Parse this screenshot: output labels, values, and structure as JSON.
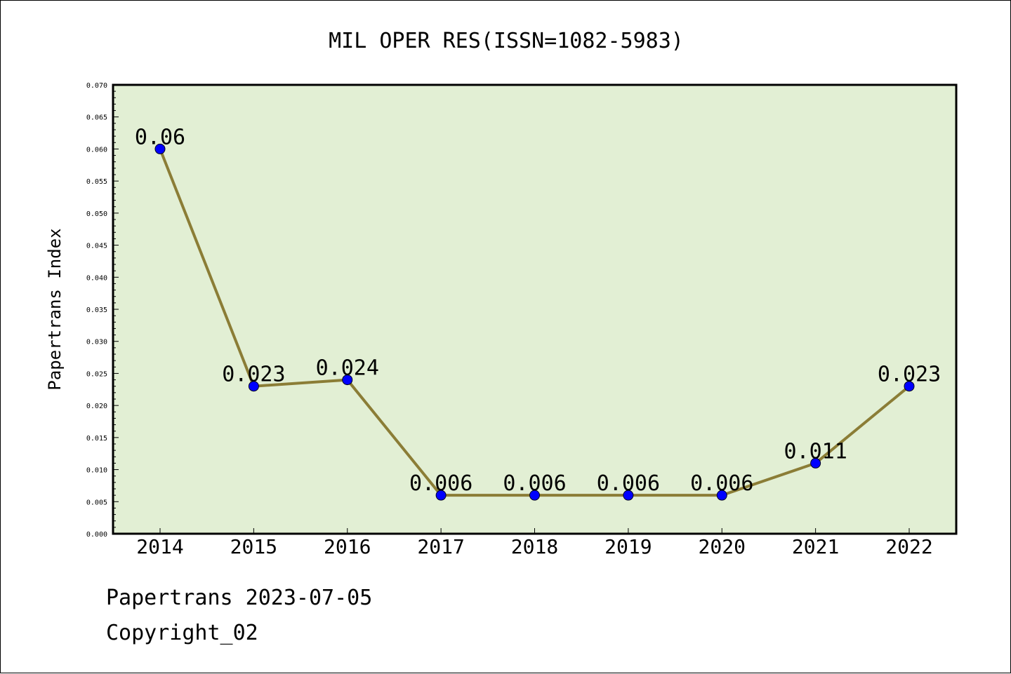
{
  "chart_data": {
    "type": "line",
    "title": "MIL OPER RES(ISSN=1082-5983)",
    "xlabel": "",
    "ylabel": "Papertrans Index",
    "categories": [
      "2014",
      "2015",
      "2016",
      "2017",
      "2018",
      "2019",
      "2020",
      "2021",
      "2022"
    ],
    "series": [
      {
        "values": [
          0.06,
          0.023,
          0.024,
          0.006,
          0.006,
          0.006,
          0.006,
          0.011,
          0.023
        ],
        "labels": [
          "0.06",
          "0.023",
          "0.024",
          "0.006",
          "0.006",
          "0.006",
          "0.006",
          "0.011",
          "0.023"
        ]
      }
    ],
    "ylim": [
      0,
      0.07
    ],
    "yticks": [
      "0.000",
      "0.005",
      "0.010",
      "0.015",
      "0.020",
      "0.025",
      "0.030",
      "0.035",
      "0.040",
      "0.045",
      "0.050",
      "0.055",
      "0.060",
      "0.065",
      "0.070"
    ],
    "grid": false,
    "legend": "none",
    "colors": {
      "plot_background": "#e2efd4",
      "line": "#8b7d36",
      "marker": "#0000ff",
      "axis": "#000000"
    }
  },
  "footer": {
    "source_line": "Papertrans 2023-07-05",
    "copyright_line": "Copyright_02"
  }
}
